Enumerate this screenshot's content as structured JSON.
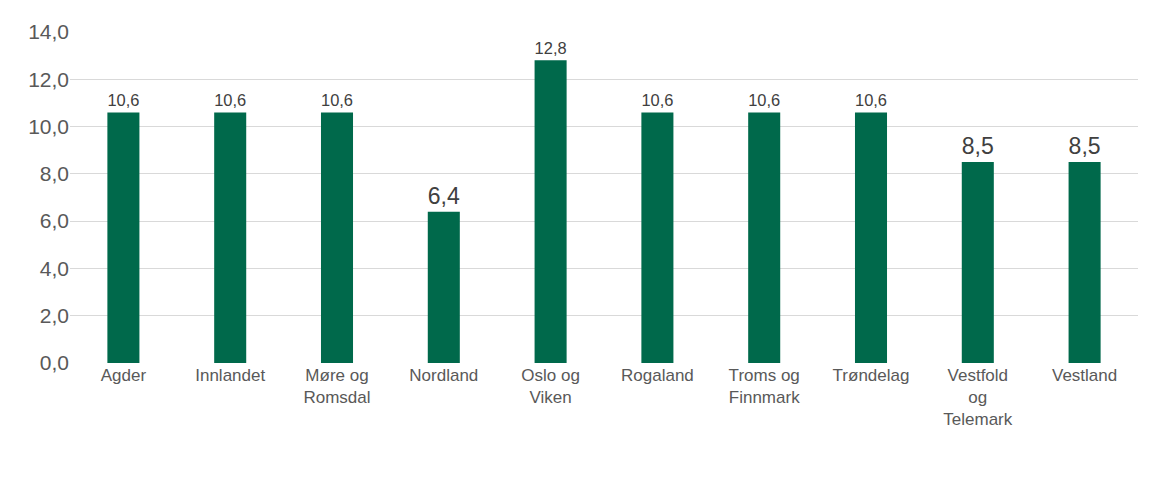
{
  "chart_data": {
    "type": "bar",
    "categories": [
      "Agder",
      "Innlandet",
      "Møre og Romsdal",
      "Nordland",
      "Oslo og Viken",
      "Rogaland",
      "Troms og Finnmark",
      "Trøndelag",
      "Vestfold og Telemark",
      "Vestland"
    ],
    "values": [
      10.6,
      10.6,
      10.6,
      6.4,
      12.8,
      10.6,
      10.6,
      10.6,
      8.5,
      8.5
    ],
    "value_labels": [
      "10,6",
      "10,6",
      "10,6",
      "6,4",
      "12,8",
      "10,6",
      "10,6",
      "10,6",
      "8,5",
      "8,5"
    ],
    "color": "#00694b",
    "ylim": [
      0,
      14
    ],
    "yticks": [
      {
        "value": 0,
        "label": "0,0"
      },
      {
        "value": 2,
        "label": "2,0"
      },
      {
        "value": 4,
        "label": "4,0"
      },
      {
        "value": 6,
        "label": "6,0"
      },
      {
        "value": 8,
        "label": "8,0"
      },
      {
        "value": 10,
        "label": "10,0"
      },
      {
        "value": 12,
        "label": "12,0"
      },
      {
        "value": 14,
        "label": "14,0"
      }
    ],
    "grid": true,
    "data_labels": true
  }
}
